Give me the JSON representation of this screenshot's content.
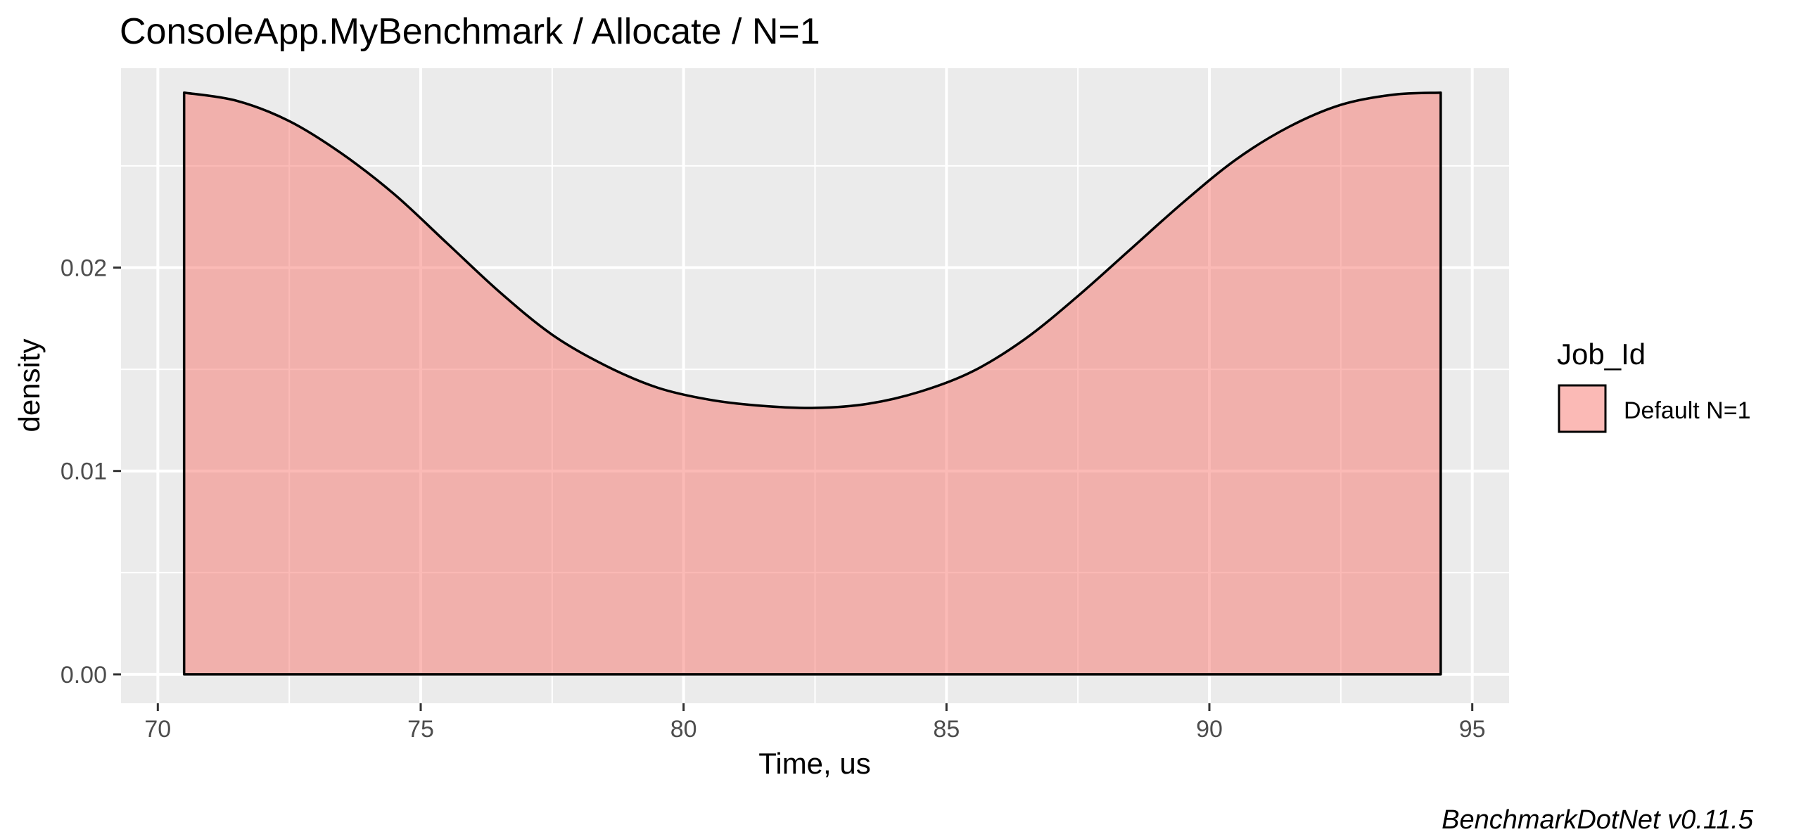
{
  "chart_data": {
    "type": "area",
    "title": "ConsoleApp.MyBenchmark / Allocate / N=1",
    "xlabel": "Time, us",
    "ylabel": "density",
    "xlim": [
      69.3,
      95.7
    ],
    "ylim": [
      -0.00142,
      0.0298
    ],
    "x_ticks": [
      70,
      75,
      80,
      85,
      90,
      95
    ],
    "x_tick_labels": [
      "70",
      "75",
      "80",
      "85",
      "90",
      "95"
    ],
    "y_ticks": [
      0.0,
      0.01,
      0.02
    ],
    "y_tick_labels": [
      "0.00",
      "0.01",
      "0.02"
    ],
    "x_minor_ticks": [
      72.5,
      77.5,
      82.5,
      87.5,
      92.5
    ],
    "y_minor_ticks": [
      0.005,
      0.015,
      0.025
    ],
    "grid": true,
    "legend_title": "Job_Id",
    "legend_position": "right",
    "series": [
      {
        "name": "Default N=1",
        "color": "#F8766D",
        "x": [
          70.5,
          71.5,
          72.5,
          73.5,
          74.5,
          75.5,
          76.5,
          77.5,
          78.5,
          79.5,
          80.5,
          81.5,
          82.5,
          83.5,
          84.5,
          85.5,
          86.5,
          87.5,
          88.5,
          89.5,
          90.5,
          91.5,
          92.5,
          93.5,
          94.4
        ],
        "y": [
          0.0286,
          0.0282,
          0.0272,
          0.0256,
          0.0236,
          0.0212,
          0.0188,
          0.0167,
          0.0152,
          0.0141,
          0.0135,
          0.0132,
          0.0131,
          0.0133,
          0.0139,
          0.0149,
          0.0165,
          0.0186,
          0.0209,
          0.0232,
          0.0253,
          0.0269,
          0.028,
          0.0285,
          0.0286
        ]
      }
    ]
  },
  "caption": "BenchmarkDotNet v0.11.5",
  "colors": {
    "panel_background": "#EBEBEB",
    "grid_line": "#FFFFFF",
    "fill": "#F8766D",
    "outline": "#000000"
  }
}
